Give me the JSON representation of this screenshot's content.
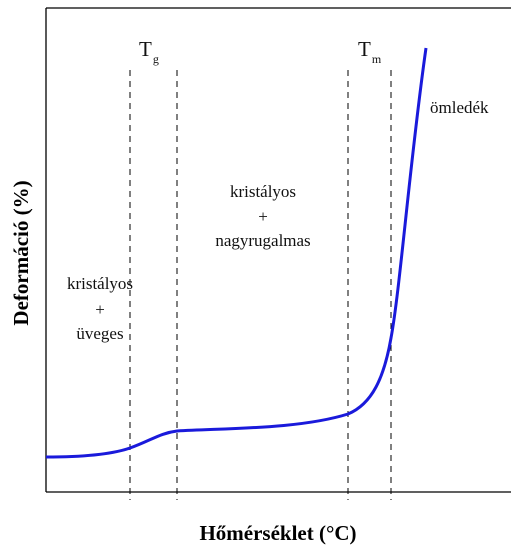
{
  "chart_data": {
    "type": "line",
    "xlabel": "Hőmérséklet (°C)",
    "ylabel": "Deformáció (%)",
    "grid": false,
    "legend": "none",
    "series_color": "#1a1adb",
    "transitions": [
      {
        "symbol": "T",
        "subscript": "g"
      },
      {
        "symbol": "T",
        "subscript": "m"
      }
    ],
    "region_labels": [
      {
        "lines": [
          "kristályos",
          "+",
          "üveges"
        ]
      },
      {
        "lines": [
          "kristályos",
          "+",
          "nagyrugalmas"
        ]
      },
      {
        "lines": [
          "ömledék"
        ]
      }
    ]
  }
}
